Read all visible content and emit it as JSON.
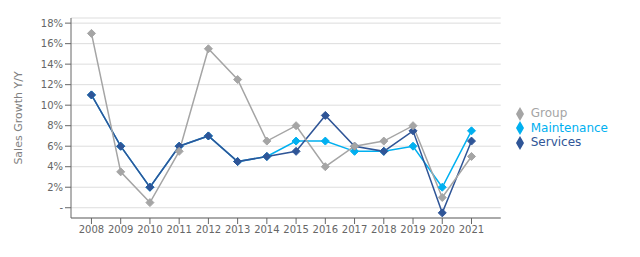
{
  "chart_data": {
    "type": "line",
    "ylabel": "Sales Growth Y/Y",
    "x": [
      2008,
      2009,
      2010,
      2011,
      2012,
      2013,
      2014,
      2015,
      2016,
      2017,
      2018,
      2019,
      2020,
      2021
    ],
    "xlim": [
      2007.3,
      2022.0
    ],
    "xticks": [
      2008,
      2009,
      2010,
      2011,
      2012,
      2013,
      2014,
      2015,
      2016,
      2017,
      2018,
      2019,
      2020,
      2021
    ],
    "ylim": [
      -1,
      18.5
    ],
    "yticks": [
      {
        "value": 0,
        "label": "-"
      },
      {
        "value": 2,
        "label": "2%"
      },
      {
        "value": 4,
        "label": "4%"
      },
      {
        "value": 6,
        "label": "6%"
      },
      {
        "value": 8,
        "label": "8%"
      },
      {
        "value": 10,
        "label": "10%"
      },
      {
        "value": 12,
        "label": "12%"
      },
      {
        "value": 14,
        "label": "14%"
      },
      {
        "value": 16,
        "label": "16%"
      },
      {
        "value": 18,
        "label": "18%"
      }
    ],
    "grid": true,
    "legend": "right",
    "marker": "diamond",
    "series": [
      {
        "name": "Maintenance",
        "color": "#00b0f0",
        "values": [
          11,
          6,
          2,
          6,
          7,
          4.5,
          5,
          6.5,
          6.5,
          5.5,
          5.5,
          6,
          2,
          7.5
        ]
      },
      {
        "name": "Services",
        "color": "#2f5597",
        "values": [
          11,
          6,
          2,
          6,
          7,
          4.5,
          5,
          5.5,
          9,
          6,
          5.5,
          7.5,
          -0.5,
          6.5
        ]
      },
      {
        "name": "Group",
        "color": "#a5a5a5",
        "values": [
          17,
          3.5,
          0.5,
          5.5,
          15.5,
          12.5,
          6.5,
          8,
          4,
          6,
          6.5,
          8,
          1,
          5
        ]
      }
    ]
  }
}
